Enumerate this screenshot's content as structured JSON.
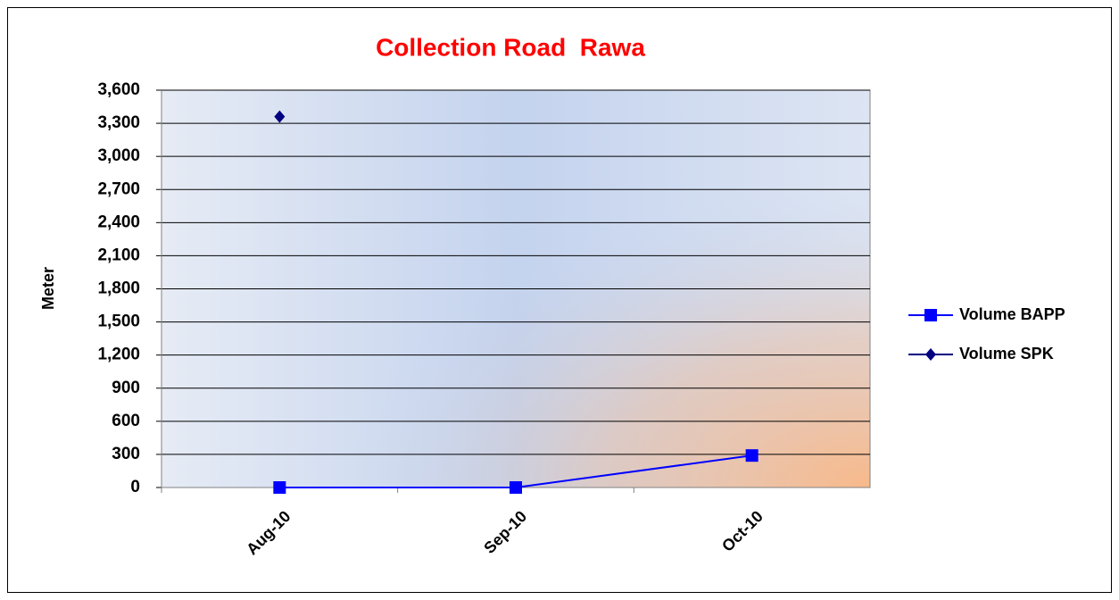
{
  "chart_data": {
    "type": "line",
    "title": "Collection Road  Rawa",
    "y_label": "Meter",
    "categories": [
      "Aug-10",
      "Sep-10",
      "Oct-10"
    ],
    "series": [
      {
        "name": "Volume BAPP",
        "color": "#0000ff",
        "marker": "square",
        "values": [
          0,
          0,
          290
        ]
      },
      {
        "name": "Volume SPK",
        "color": "#000080",
        "marker": "diamond",
        "values": [
          3360,
          null,
          null
        ]
      }
    ],
    "ylim": [
      0,
      3600
    ],
    "yticks": [
      0,
      300,
      600,
      900,
      {
        "value": 1200,
        "label": "1,200"
      },
      {
        "value": 1500,
        "label": "1,500"
      },
      {
        "value": 1800,
        "label": "1,800"
      },
      {
        "value": 2100,
        "label": "2,100"
      },
      {
        "value": 2400,
        "label": "2,400"
      },
      {
        "value": 2700,
        "label": "2,700"
      },
      {
        "value": 3000,
        "label": "3,000"
      },
      {
        "value": 3300,
        "label": "3,300"
      },
      {
        "value": 3600,
        "label": "3,600"
      }
    ],
    "grid": true,
    "legend": "right"
  }
}
